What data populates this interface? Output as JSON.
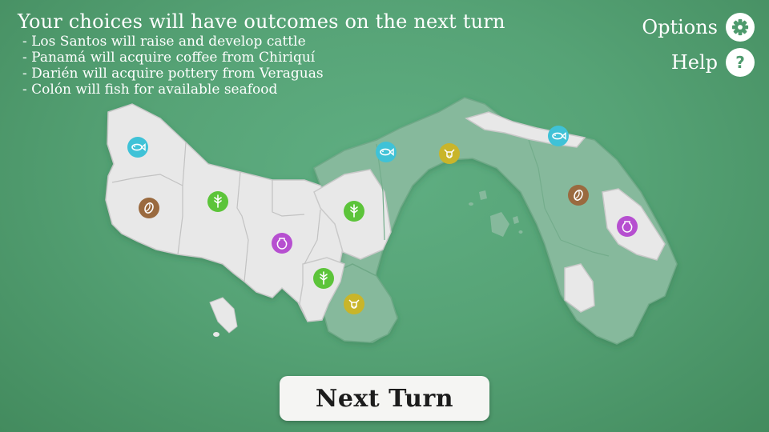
{
  "header": {
    "title": "Your choices will have outcomes on the next turn",
    "outcomes": [
      "- Los Santos will raise and develop cattle",
      "- Panamá will acquire coffee from Chiriquí",
      "- Darién will acquire pottery from Veraguas",
      "- Colón will fish for available seafood"
    ]
  },
  "controls": {
    "options_label": "Options",
    "help_label": "Help",
    "help_glyph": "?",
    "next_turn_label": "Next Turn"
  },
  "colors": {
    "background": "#56a376",
    "region_owned": "#e8e8e8",
    "region_other": "#86b99c",
    "fish": "#3fc2d7",
    "coffee": "#9a6a3f",
    "grain": "#5cc43a",
    "pottery": "#b64fd0",
    "cattle": "#c9b52a"
  },
  "map": {
    "resource_markers": [
      {
        "resource": "fish-icon"
      },
      {
        "resource": "coffee-icon"
      },
      {
        "resource": "grain-icon"
      },
      {
        "resource": "pottery-icon"
      },
      {
        "resource": "grain-icon"
      },
      {
        "resource": "grain-icon"
      },
      {
        "resource": "cattle-icon"
      },
      {
        "resource": "fish-icon"
      },
      {
        "resource": "cattle-icon"
      },
      {
        "resource": "fish-icon"
      },
      {
        "resource": "coffee-icon"
      },
      {
        "resource": "pottery-icon"
      }
    ]
  }
}
